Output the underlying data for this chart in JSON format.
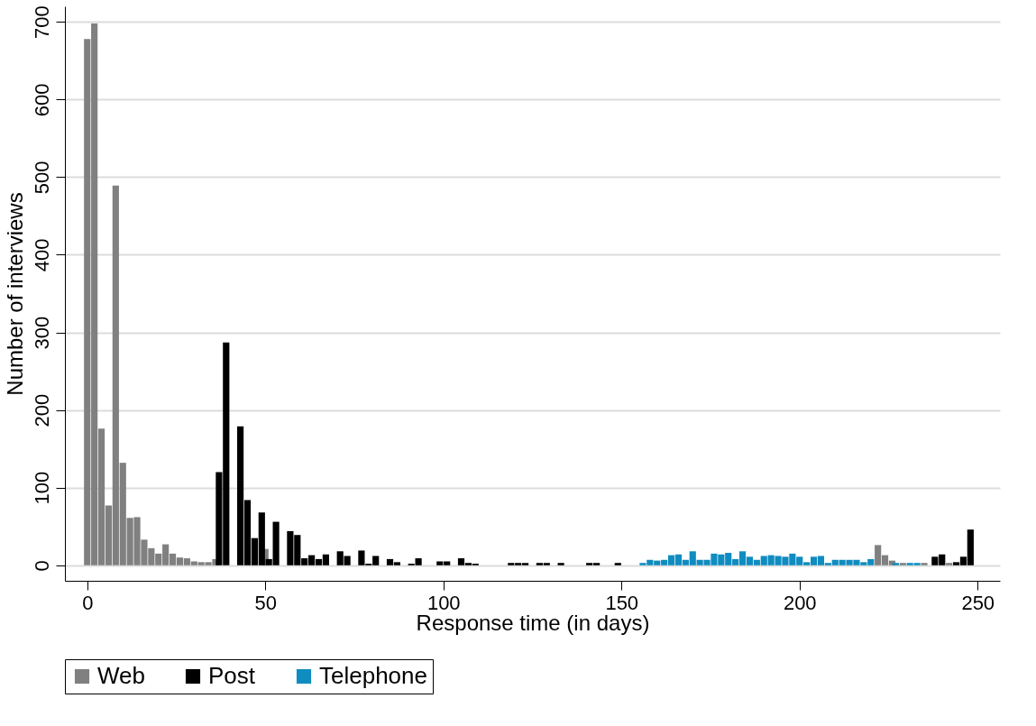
{
  "chart_data": {
    "type": "bar",
    "xlabel": "Response time (in days)",
    "ylabel": "Number of interviews",
    "xlim": [
      -5,
      255
    ],
    "xticks": [
      0,
      50,
      100,
      150,
      200,
      250
    ],
    "ylim": [
      -20,
      720
    ],
    "yticks": [
      0,
      100,
      200,
      300,
      400,
      500,
      600,
      700
    ],
    "grid": "y",
    "legend": "bottom",
    "series": [
      {
        "name": "Web",
        "color": "#808080",
        "x": [
          0,
          2,
          4,
          6,
          8,
          10,
          12,
          14,
          16,
          18,
          20,
          22,
          24,
          26,
          28,
          30,
          32,
          34,
          36,
          50,
          222,
          224,
          226,
          229,
          235,
          242
        ],
        "values": [
          678,
          698,
          176,
          77,
          489,
          132,
          61,
          62,
          33,
          22,
          15,
          27,
          15,
          10,
          9,
          5,
          4,
          4,
          8,
          21,
          26,
          13,
          6,
          3,
          3,
          3
        ]
      },
      {
        "name": "Post",
        "color": "#000000",
        "x": [
          37,
          39,
          43,
          45,
          47,
          49,
          51,
          53,
          57,
          59,
          61,
          63,
          65,
          67,
          71,
          73,
          77,
          79,
          81,
          85,
          87,
          91,
          93,
          99,
          101,
          105,
          107,
          109,
          119,
          121,
          123,
          127,
          129,
          133,
          141,
          143,
          149,
          238,
          240,
          244,
          246,
          248
        ],
        "values": [
          120,
          287,
          179,
          84,
          35,
          68,
          8,
          56,
          44,
          39,
          9,
          13,
          8,
          14,
          18,
          12,
          19,
          2,
          12,
          8,
          4,
          2,
          9,
          5,
          5,
          9,
          3,
          2,
          3,
          3,
          3,
          3,
          3,
          3,
          3,
          3,
          3,
          11,
          14,
          4,
          11,
          46
        ]
      },
      {
        "name": "Telephone",
        "color": "#0f8cc0",
        "x": [
          156,
          158,
          160,
          162,
          164,
          166,
          168,
          170,
          172,
          174,
          176,
          178,
          180,
          182,
          184,
          186,
          188,
          190,
          192,
          194,
          196,
          198,
          200,
          202,
          204,
          206,
          208,
          210,
          212,
          214,
          216,
          218,
          220,
          227,
          231,
          233
        ],
        "values": [
          3,
          7,
          6,
          7,
          13,
          14,
          7,
          18,
          7,
          7,
          15,
          14,
          16,
          8,
          18,
          11,
          7,
          12,
          13,
          12,
          11,
          15,
          11,
          4,
          11,
          12,
          3,
          7,
          7,
          7,
          7,
          4,
          8,
          3,
          3,
          3
        ]
      }
    ]
  }
}
